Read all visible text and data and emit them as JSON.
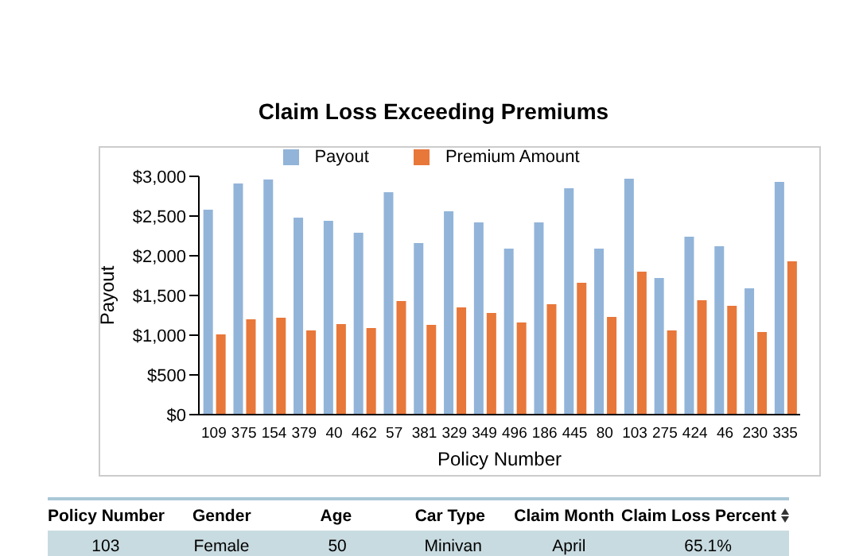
{
  "chart_data": [
    {
      "type": "bar",
      "title": "Claim Loss Exceeding Premiums",
      "xlabel": "Policy Number",
      "ylabel": "Payout",
      "categories": [
        "109",
        "375",
        "154",
        "379",
        "40",
        "462",
        "57",
        "381",
        "329",
        "349",
        "496",
        "186",
        "445",
        "80",
        "103",
        "275",
        "424",
        "46",
        "230",
        "335"
      ],
      "series": [
        {
          "name": "Payout",
          "color": "#92b4d9",
          "values": [
            2580,
            2910,
            2960,
            2480,
            2440,
            2290,
            2800,
            2160,
            2560,
            2420,
            2090,
            2420,
            2850,
            2090,
            2970,
            1720,
            2240,
            2120,
            1590,
            2930
          ]
        },
        {
          "name": "Premium Amount",
          "color": "#e8773a",
          "values": [
            1010,
            1200,
            1220,
            1060,
            1140,
            1090,
            1430,
            1130,
            1350,
            1280,
            1160,
            1390,
            1660,
            1230,
            1800,
            1060,
            1440,
            1370,
            1040,
            1930
          ]
        }
      ],
      "ylim": [
        0,
        3000
      ],
      "yticks": [
        {
          "value": 0,
          "label": "$0"
        },
        {
          "value": 500,
          "label": "$500"
        },
        {
          "value": 1000,
          "label": "$1,000"
        },
        {
          "value": 1500,
          "label": "$1,500"
        },
        {
          "value": 2000,
          "label": "$2,000"
        },
        {
          "value": 2500,
          "label": "$2,500"
        },
        {
          "value": 3000,
          "label": "$3,000"
        }
      ],
      "grid": false,
      "legend": "top"
    },
    {
      "type": "other",
      "categories": [
        "Policy Number",
        "Gender",
        "Age",
        "Car Type",
        "Claim Month",
        "Claim Loss Percent"
      ],
      "annotations": [
        "103",
        "Female",
        "50",
        "Minivan",
        "April",
        "65.1%"
      ]
    }
  ]
}
